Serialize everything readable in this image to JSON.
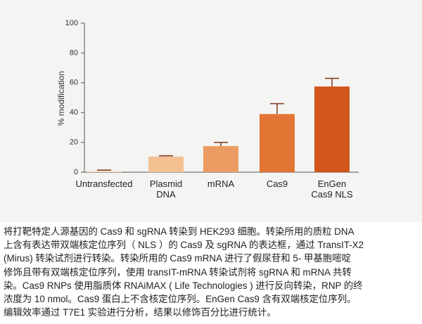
{
  "chart_data": {
    "type": "bar",
    "ylabel": "% modification",
    "categories": [
      "Untransfected",
      "Plasmid\nDNA",
      "mRNA",
      "Cas9",
      "EnGen\nCas9 NLS"
    ],
    "values": [
      1,
      10.5,
      17.5,
      39,
      57.5
    ],
    "errors": [
      0.4,
      0.5,
      2.5,
      7,
      5.5
    ],
    "colors": [
      "#f8dfcb",
      "#f4c193",
      "#eb9c62",
      "#e27534",
      "#d1561b"
    ],
    "error_color": "#7d3718",
    "ylim": [
      0,
      100
    ],
    "yticks": [
      0,
      20,
      40,
      60,
      80,
      100
    ]
  },
  "caption": [
    "将打靶特定人源基因的 Cas9 和 sgRNA 转染到 HEK293 细胞。转染所用的质粒 DNA",
    "上含有表达带双端核定位序列（ NLS ）的 Cas9 及 sgRNA 的表达框，通过 TransIT-X2",
    "(Mirus) 转染试剂进行转染。转染所用的 Cas9 mRNA 进行了假尿苷和 5- 甲基胞嘧啶",
    "修饰且带有双端核定位序列，使用 transIT-mRNA 转染试剂将 sgRNA 和 mRNA 共转",
    "染。Cas9 RNPs 使用脂质体 RNAiMAX ( Life Technologies ) 进行反向转染，RNP 的终",
    "浓度为 10 nmol。Cas9 蛋白上不含核定位序列。EnGen Cas9 含有双端核定位序列。",
    "编辑效率通过 T7E1 实验进行分析，结果以修饰百分比进行统计。"
  ]
}
